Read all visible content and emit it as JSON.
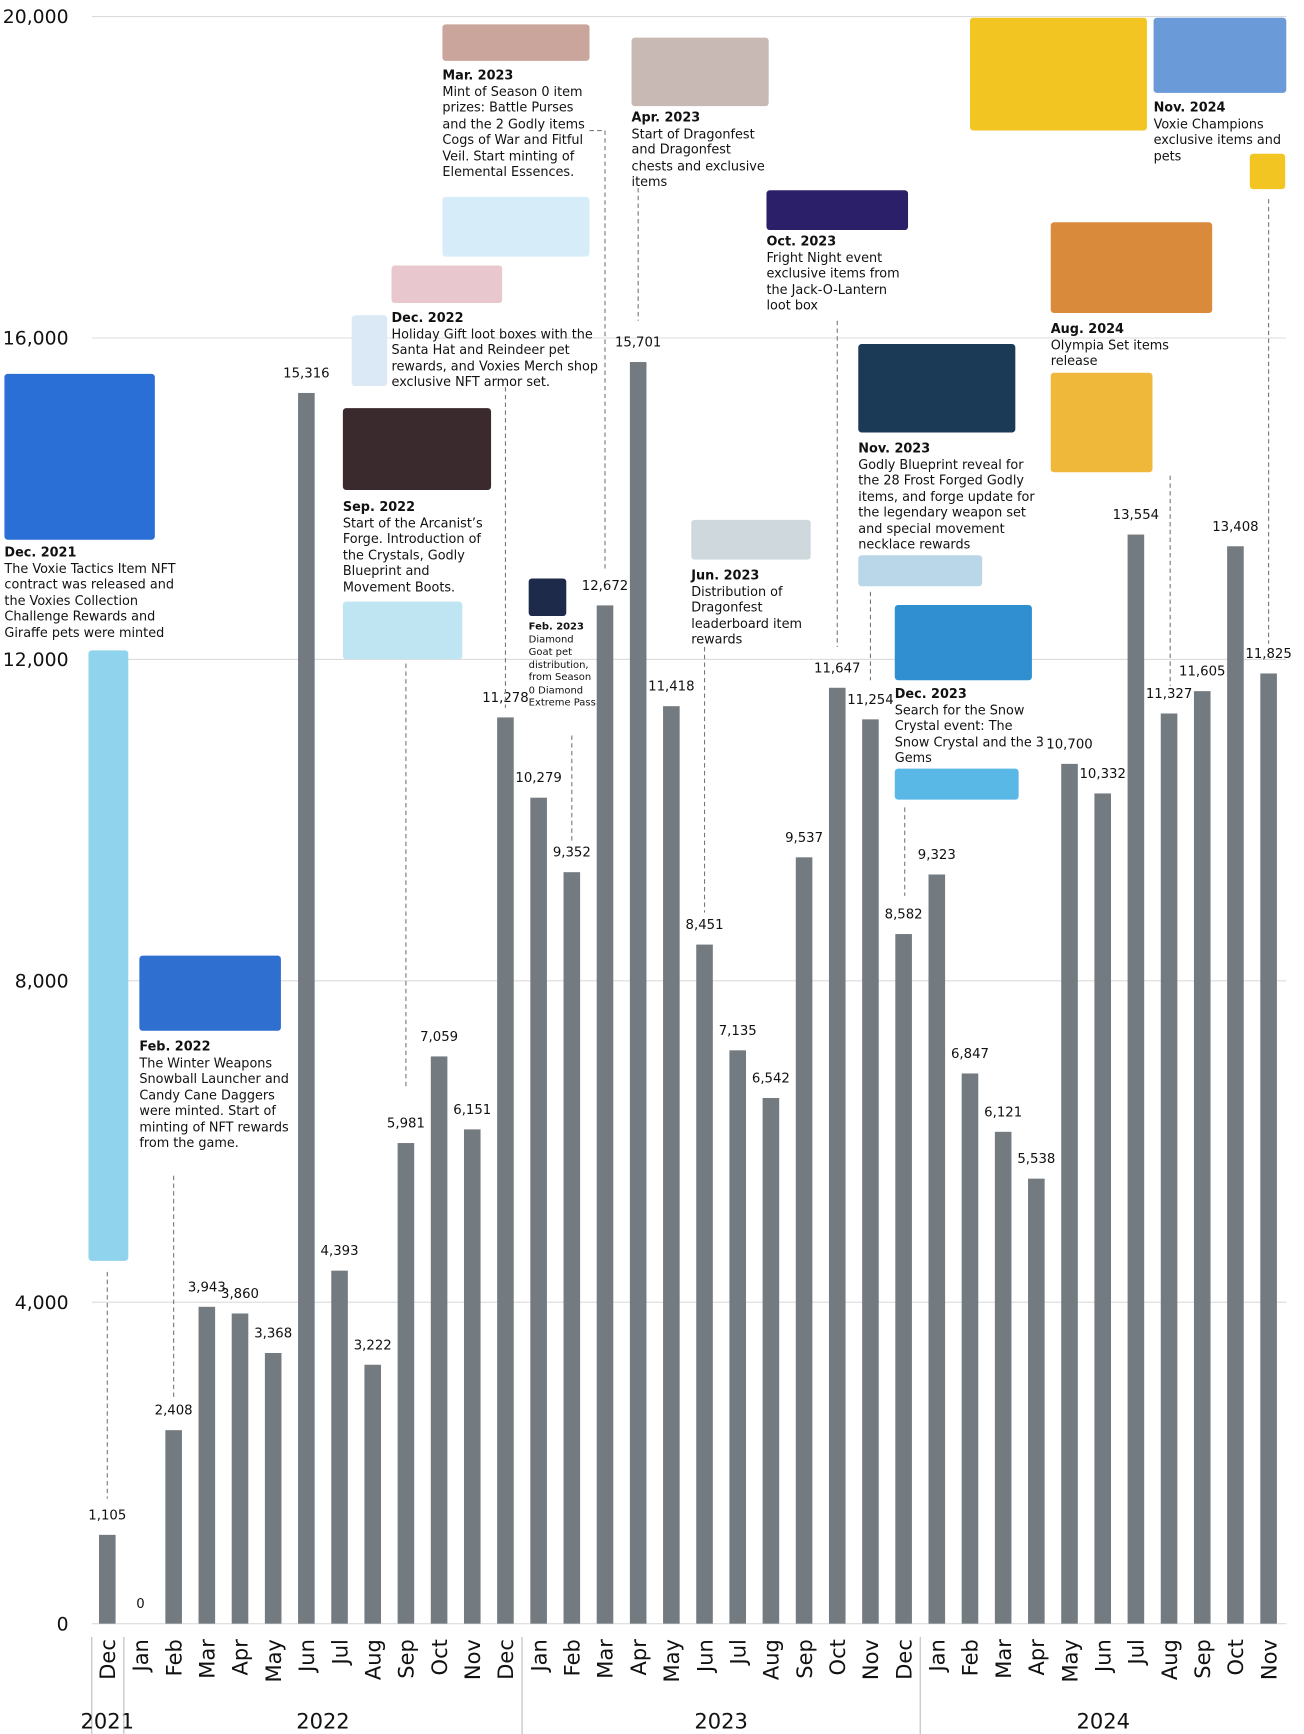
{
  "chart_data": {
    "type": "bar",
    "color": "#737a80",
    "grid": true,
    "categories": [
      "Dec",
      "Jan",
      "Feb",
      "Mar",
      "Apr",
      "May",
      "Jun",
      "Jul",
      "Aug",
      "Sep",
      "Oct",
      "Nov",
      "Dec",
      "Jan",
      "Feb",
      "Mar",
      "Apr",
      "May",
      "Jun",
      "Jul",
      "Aug",
      "Sep",
      "Oct",
      "Nov",
      "Dec",
      "Jan",
      "Feb",
      "Mar",
      "Apr",
      "May",
      "Jun",
      "Jul",
      "Aug",
      "Sep",
      "Oct",
      "Nov"
    ],
    "years": [
      "2021",
      "2022",
      "2023",
      "2024"
    ],
    "values": [
      1105,
      0,
      2408,
      3943,
      3860,
      3368,
      15316,
      4393,
      3222,
      5981,
      7059,
      6151,
      11278,
      10279,
      9352,
      12672,
      15701,
      11418,
      8451,
      7135,
      6542,
      9537,
      11647,
      11254,
      8582,
      9323,
      6847,
      6121,
      5538,
      10700,
      10332,
      13554,
      11327,
      11605,
      13408,
      11825
    ],
    "value_labels": [
      "1,105",
      "0",
      "2,408",
      "3,943",
      "3,860",
      "3,368",
      "15,316",
      "4,393",
      "3,222",
      "5,981",
      "7,059",
      "6,151",
      "11,278",
      "10,279",
      "9,352",
      "12,672",
      "15,701",
      "11,418",
      "8,451",
      "7,135",
      "6,542",
      "9,537",
      "11,647",
      "11,254",
      "8,582",
      "9,323",
      "6,847",
      "6,121",
      "5,538",
      "10,700",
      "10,332",
      "13,554",
      "11,327",
      "11,605",
      "13,408",
      "11,825"
    ],
    "ylim": [
      0,
      20000
    ],
    "yticks": [
      0,
      {
        "value": 4000,
        "label": "4,000"
      },
      {
        "value": 8000,
        "label": "8,000"
      },
      {
        "value": 12000,
        "label": "12,000"
      },
      {
        "value": 16000,
        "label": "16,000"
      },
      {
        "value": 20000,
        "label": "20,000"
      }
    ],
    "annotations": [
      {
        "date": "Dec. 2021",
        "text": "The Voxie Tactics Item NFT contract was released and the Voxies Collection Challenge Rewards and Giraffe pets were minted"
      },
      {
        "date": "Feb. 2022",
        "text": "The Winter Weapons Snowball Launcher and Candy Cane Daggers were minted. Start of minting of NFT rewards from the game."
      },
      {
        "date": "Sep. 2022",
        "text": "Start of the Arcanist’s Forge. Introduction of the Crystals, Godly Blueprint and Movement Boots."
      },
      {
        "date": "Dec. 2022",
        "text": "Holiday Gift loot boxes with the Santa Hat and Reindeer pet rewards, and Voxies Merch shop exclusive NFT armor set."
      },
      {
        "date": "Mar. 2023",
        "text": "Mint of Season 0 item prizes: Battle Purses and the 2 Godly items Cogs of War and Fitful Veil. Start minting of Elemental Essences."
      },
      {
        "date": "Feb. 2023",
        "text": "Diamond Goat pet distribution, from Season 0 Diamond Extreme Pass"
      },
      {
        "date": "Apr. 2023",
        "text": "Start of Dragonfest and Dragonfest chests and exclusive items"
      },
      {
        "date": "Jun. 2023",
        "text": "Distribution of Dragonfest leaderboard item rewards"
      },
      {
        "date": "Oct. 2023",
        "text": "Fright Night event exclusive items from the Jack-O-Lantern loot box"
      },
      {
        "date": "Nov. 2023",
        "text": "Godly Blueprint reveal for the 28 Frost Forged Godly items, and forge update for the legendary weapon set and special movement necklace rewards"
      },
      {
        "date": "Dec. 2023",
        "text": "Search for the Snow Crystal event: The Snow Crystal and the 3 Gems"
      },
      {
        "date": "Aug. 2024",
        "text": "Olympia Set items release"
      },
      {
        "date": "Nov. 2024",
        "text": "Voxie Champions exclusive items and pets"
      }
    ]
  }
}
